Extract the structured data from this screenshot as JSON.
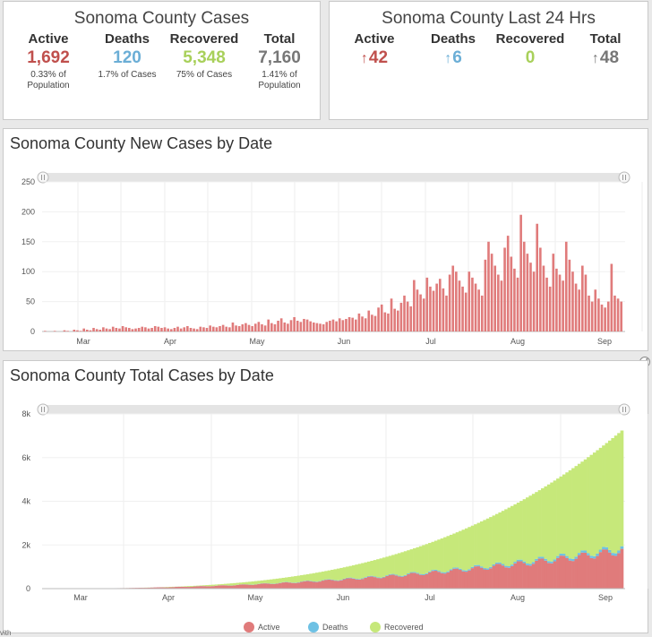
{
  "cases_card": {
    "title": "Sonoma County Cases",
    "stats": [
      {
        "label": "Active",
        "value": "1,692",
        "note": "0.33% of Population",
        "color": "#c0504d"
      },
      {
        "label": "Deaths",
        "value": "120",
        "note": "1.7% of Cases",
        "color": "#6baed6"
      },
      {
        "label": "Recovered",
        "value": "5,348",
        "note": "75% of Cases",
        "color": "#a8d05a"
      },
      {
        "label": "Total",
        "value": "7,160",
        "note": "1.41% of Population",
        "color": "#777777"
      }
    ]
  },
  "last24_card": {
    "title": "Sonoma County Last 24 Hrs",
    "stats": [
      {
        "label": "Active",
        "value": "42",
        "arrow": "↑",
        "color": "#c0504d"
      },
      {
        "label": "Deaths",
        "value": "6",
        "arrow": "↑",
        "color": "#6baed6"
      },
      {
        "label": "Recovered",
        "value": "0",
        "arrow": "",
        "color": "#a8d05a"
      },
      {
        "label": "Total",
        "value": "48",
        "arrow": "↑",
        "color": "#777777"
      }
    ]
  },
  "colors": {
    "active": "#e07b7b",
    "deaths": "#6ec1e4",
    "recovered": "#c6e87a"
  },
  "new_cases_title": "Sonoma County New Cases by Date",
  "total_cases_title": "Sonoma County Total Cases by Date",
  "legend": {
    "active": "Active",
    "deaths": "Deaths",
    "recovered": "Recovered"
  },
  "footer_fragment": "vith",
  "chart_data": [
    {
      "type": "bar",
      "title": "Sonoma County New Cases by Date",
      "x_ticks": [
        "Mar",
        "Apr",
        "May",
        "Jun",
        "Jul",
        "Aug",
        "Sep"
      ],
      "y_ticks": [
        "0",
        "50",
        "100",
        "150",
        "200",
        "250"
      ],
      "ylim": [
        0,
        250
      ],
      "start": "2020-02-20",
      "values": [
        1,
        0,
        0,
        1,
        0,
        0,
        2,
        1,
        0,
        3,
        2,
        1,
        5,
        3,
        2,
        6,
        4,
        3,
        7,
        5,
        4,
        8,
        6,
        5,
        9,
        7,
        6,
        4,
        5,
        6,
        8,
        7,
        5,
        6,
        9,
        8,
        6,
        7,
        5,
        4,
        6,
        8,
        5,
        7,
        9,
        6,
        5,
        4,
        8,
        7,
        6,
        10,
        8,
        7,
        9,
        11,
        8,
        7,
        15,
        10,
        9,
        12,
        14,
        11,
        9,
        13,
        16,
        12,
        10,
        20,
        14,
        12,
        18,
        22,
        15,
        13,
        19,
        24,
        18,
        16,
        21,
        20,
        17,
        15,
        14,
        13,
        12,
        16,
        18,
        20,
        17,
        22,
        19,
        21,
        24,
        23,
        20,
        30,
        25,
        22,
        35,
        28,
        26,
        40,
        45,
        32,
        30,
        55,
        38,
        35,
        48,
        60,
        50,
        42,
        86,
        70,
        62,
        55,
        90,
        75,
        68,
        80,
        88,
        72,
        60,
        95,
        110,
        100,
        85,
        75,
        65,
        100,
        90,
        80,
        70,
        60,
        120,
        150,
        130,
        110,
        95,
        85,
        140,
        160,
        125,
        105,
        90,
        195,
        150,
        130,
        115,
        100,
        180,
        140,
        110,
        90,
        75,
        130,
        105,
        95,
        85,
        150,
        120,
        100,
        80,
        70,
        110,
        95,
        60,
        50,
        70,
        55,
        45,
        40,
        50,
        113,
        60,
        55,
        50
      ]
    },
    {
      "type": "area",
      "title": "Sonoma County Total Cases by Date",
      "x_ticks": [
        "Mar",
        "Apr",
        "May",
        "Jun",
        "Jul",
        "Aug",
        "Sep"
      ],
      "y_ticks": [
        "0",
        "2k",
        "4k",
        "6k",
        "8k"
      ],
      "ylim": [
        0,
        8000
      ],
      "series": [
        {
          "name": "Active",
          "last": 1692
        },
        {
          "name": "Deaths",
          "last": 120
        },
        {
          "name": "Recovered",
          "last": 5348
        }
      ],
      "total_last": 7160
    }
  ]
}
